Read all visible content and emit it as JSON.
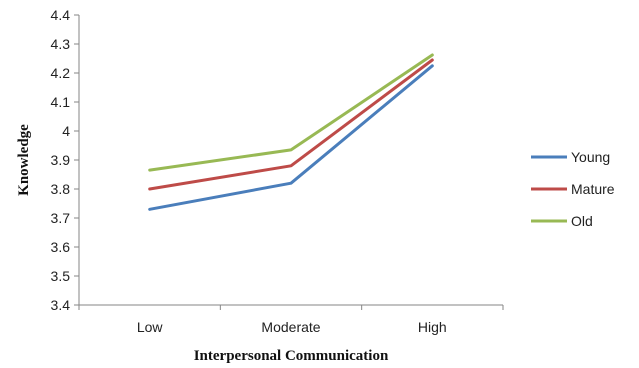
{
  "chart_data": {
    "type": "line",
    "categories": [
      "Low",
      "Moderate",
      "High"
    ],
    "series": [
      {
        "name": "Young",
        "values": [
          3.73,
          3.82,
          4.225
        ],
        "color": "#4a7ebb"
      },
      {
        "name": "Mature",
        "values": [
          3.8,
          3.88,
          4.245
        ],
        "color": "#be4b48"
      },
      {
        "name": "Old",
        "values": [
          3.865,
          3.935,
          4.262
        ],
        "color": "#98b954"
      }
    ],
    "xlabel": "Interpersonal  Communication",
    "ylabel": "Knowledge",
    "ylim": [
      3.4,
      4.4
    ],
    "yticks": [
      "3.4",
      "3.5",
      "3.6",
      "3.7",
      "3.8",
      "3.9",
      "4",
      "4.1",
      "4.2",
      "4.3",
      "4.4"
    ],
    "grid": false,
    "legend_position": "right"
  }
}
